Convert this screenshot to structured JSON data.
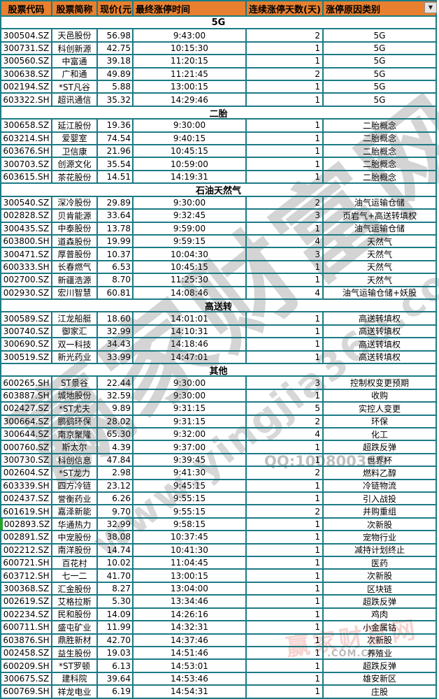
{
  "colors": {
    "border_teal": "#1B7B85",
    "header_orange": "#E8802F",
    "highlight_green": "#23A428"
  },
  "header": {
    "columns": [
      "股票代码",
      "股票简称",
      "现价(元)",
      "最终涨停时间",
      "连续涨停天数(天)",
      "涨停原因类别"
    ],
    "filter_icon_glyph": "▼"
  },
  "highlighted_code": "002893.SZ",
  "sections": [
    {
      "title": "5G",
      "rows": [
        {
          "code": "300504.SZ",
          "name": "天邑股份",
          "price": "56.98",
          "time": "9:43:00",
          "days": "2",
          "reason": "5G"
        },
        {
          "code": "300731.SZ",
          "name": "科创新源",
          "price": "42.75",
          "time": "10:15:30",
          "days": "1",
          "reason": "5G"
        },
        {
          "code": "300560.SZ",
          "name": "中富通",
          "price": "39.18",
          "time": "11:20:15",
          "days": "1",
          "reason": "5G"
        },
        {
          "code": "300638.SZ",
          "name": "广和通",
          "price": "49.89",
          "time": "11:21:45",
          "days": "2",
          "reason": "5G"
        },
        {
          "code": "002194.SZ",
          "name": "*ST凡谷",
          "price": "5.88",
          "time": "13:00:15",
          "days": "1",
          "reason": "5G"
        },
        {
          "code": "603322.SH",
          "name": "超讯通信",
          "price": "35.32",
          "time": "14:29:46",
          "days": "1",
          "reason": "5G"
        }
      ]
    },
    {
      "title": "二胎",
      "rows": [
        {
          "code": "300658.SZ",
          "name": "延江股份",
          "price": "19.36",
          "time": "9:30:00",
          "days": "1",
          "reason": "二胎概念"
        },
        {
          "code": "603214.SH",
          "name": "爱婴室",
          "price": "74.54",
          "time": "9:40:15",
          "days": "1",
          "reason": "二胎概念"
        },
        {
          "code": "603676.SH",
          "name": "卫信康",
          "price": "21.96",
          "time": "10:45:15",
          "days": "1",
          "reason": "二胎概念"
        },
        {
          "code": "300703.SZ",
          "name": "创源文化",
          "price": "35.54",
          "time": "10:59:00",
          "days": "1",
          "reason": "二胎概念"
        },
        {
          "code": "603615.SH",
          "name": "茶花股份",
          "price": "14.51",
          "time": "14:19:31",
          "days": "1",
          "reason": "二胎概念"
        }
      ]
    },
    {
      "title": "石油天然气",
      "rows": [
        {
          "code": "300540.SZ",
          "name": "深冷股份",
          "price": "29.89",
          "time": "9:30:00",
          "days": "2",
          "reason": "油气运输仓储"
        },
        {
          "code": "002828.SZ",
          "name": "贝肯能源",
          "price": "33.64",
          "time": "9:32:45",
          "days": "3",
          "reason": "页岩气+高送转填权"
        },
        {
          "code": "300435.SZ",
          "name": "中泰股份",
          "price": "13.78",
          "time": "9:59:00",
          "days": "1",
          "reason": "油气运输仓储"
        },
        {
          "code": "603800.SH",
          "name": "道森股份",
          "price": "19.99",
          "time": "9:59:15",
          "days": "4",
          "reason": "天然气"
        },
        {
          "code": "300471.SZ",
          "name": "厚普股份",
          "price": "10.37",
          "time": "10:04:30",
          "days": "3",
          "reason": "天然气"
        },
        {
          "code": "600333.SH",
          "name": "长春燃气",
          "price": "6.53",
          "time": "10:45:15",
          "days": "1",
          "reason": "天然气"
        },
        {
          "code": "002700.SZ",
          "name": "新疆浩源",
          "price": "8.70",
          "time": "11:25:30",
          "days": "1",
          "reason": "天然气"
        },
        {
          "code": "002930.SZ",
          "name": "宏川智慧",
          "price": "60.81",
          "time": "14:08:46",
          "days": "4",
          "reason": "油气运输仓储+妖股"
        }
      ]
    },
    {
      "title": "高送转",
      "rows": [
        {
          "code": "300589.SZ",
          "name": "江龙船艇",
          "price": "18.60",
          "time": "14:01:01",
          "days": "1",
          "reason": "高送转填权"
        },
        {
          "code": "300740.SZ",
          "name": "御家汇",
          "price": "32.99",
          "time": "14:10:31",
          "days": "1",
          "reason": "高送转填权"
        },
        {
          "code": "300690.SZ",
          "name": "双一科技",
          "price": "34.43",
          "time": "14:18:46",
          "days": "1",
          "reason": "高送转填权"
        },
        {
          "code": "300519.SZ",
          "name": "新光药业",
          "price": "33.99",
          "time": "14:47:01",
          "days": "1",
          "reason": "高送转填权"
        }
      ]
    },
    {
      "title": "其他",
      "rows": [
        {
          "code": "600265.SH",
          "name": "ST景谷",
          "price": "22.44",
          "time": "9:30:00",
          "days": "3",
          "reason": "控制权变更预期"
        },
        {
          "code": "603887.SH",
          "name": "城地股份",
          "price": "32.59",
          "time": "9:30:00",
          "days": "1",
          "reason": "收购"
        },
        {
          "code": "002427.SZ",
          "name": "*ST尤夫",
          "price": "9.89",
          "time": "9:31:15",
          "days": "5",
          "reason": "实控人变更"
        },
        {
          "code": "300664.SZ",
          "name": "鹏鹞环保",
          "price": "28.02",
          "time": "9:31:15",
          "days": "2",
          "reason": "环保"
        },
        {
          "code": "300644.SZ",
          "name": "南京聚隆",
          "price": "65.30",
          "time": "9:32:00",
          "days": "4",
          "reason": "化工"
        },
        {
          "code": "000760.SZ",
          "name": "斯太尔",
          "price": "4.39",
          "time": "9:37:00",
          "days": "1",
          "reason": "超跌反弹"
        },
        {
          "code": "300730.SZ",
          "name": "科创信息",
          "price": "47.84",
          "time": "9:39:45",
          "days": "1",
          "reason": "世界杯"
        },
        {
          "code": "002604.SZ",
          "name": "*ST龙力",
          "price": "2.98",
          "time": "9:41:30",
          "days": "2",
          "reason": "燃料乙醇"
        },
        {
          "code": "603339.SH",
          "name": "四方冷链",
          "price": "23.12",
          "time": "9:45:15",
          "days": "1",
          "reason": "冷链物流"
        },
        {
          "code": "002437.SZ",
          "name": "誉衡药业",
          "price": "6.26",
          "time": "9:55:15",
          "days": "1",
          "reason": "引入战投"
        },
        {
          "code": "601619.SH",
          "name": "嘉泽新能",
          "price": "9.70",
          "time": "9:55:15",
          "days": "2",
          "reason": "并购重组"
        },
        {
          "code": "002893.SZ",
          "name": "华通热力",
          "price": "32.99",
          "time": "9:58:15",
          "days": "1",
          "reason": "次新股"
        },
        {
          "code": "002891.SZ",
          "name": "中宠股份",
          "price": "38.08",
          "time": "10:37:45",
          "days": "1",
          "reason": "宠物行业"
        },
        {
          "code": "002212.SZ",
          "name": "南洋股份",
          "price": "14.74",
          "time": "10:41:30",
          "days": "1",
          "reason": "减持计划终止"
        },
        {
          "code": "600721.SH",
          "name": "百花村",
          "price": "10.02",
          "time": "11:04:45",
          "days": "1",
          "reason": "医药"
        },
        {
          "code": "603712.SH",
          "name": "七一二",
          "price": "41.70",
          "time": "13:00:15",
          "days": "1",
          "reason": "次新股"
        },
        {
          "code": "300368.SZ",
          "name": "汇金股份",
          "price": "8.27",
          "time": "13:04:00",
          "days": "1",
          "reason": "区块链"
        },
        {
          "code": "002619.SZ",
          "name": "艾格拉斯",
          "price": "5.30",
          "time": "13:34:46",
          "days": "1",
          "reason": "超跌反弹"
        },
        {
          "code": "002234.SZ",
          "name": "民和股份",
          "price": "14.09",
          "time": "14:26:16",
          "days": "1",
          "reason": "鸡肉"
        },
        {
          "code": "600711.SH",
          "name": "盛屯矿业",
          "price": "11.99",
          "time": "14:32:31",
          "days": "1",
          "reason": "小金属钴"
        },
        {
          "code": "603876.SH",
          "name": "鼎胜新材",
          "price": "42.70",
          "time": "14:37:46",
          "days": "1",
          "reason": "次新股"
        },
        {
          "code": "002458.SZ",
          "name": "益生股份",
          "price": "19.03",
          "time": "14:51:46",
          "days": "1",
          "reason": "养殖业"
        },
        {
          "code": "600209.SH",
          "name": "*ST罗顿",
          "price": "6.13",
          "time": "14:53:01",
          "days": "1",
          "reason": "超跌反弹"
        },
        {
          "code": "300675.SZ",
          "name": "建科院",
          "price": "39.64",
          "time": "14:53:46",
          "days": "1",
          "reason": "雄安新区"
        },
        {
          "code": "600769.SH",
          "name": "祥龙电业",
          "price": "6.19",
          "time": "14:54:31",
          "days": "1",
          "reason": "庄股"
        }
      ]
    },
    {
      "title": "",
      "rows": []
    }
  ],
  "watermarks": {
    "site_name": "赢家财富网",
    "site_url": "www.yingjia360.com",
    "qq": "QQ:100800360",
    "stamp": "赢家财富网",
    "bottom_right": ".COM.CN"
  }
}
